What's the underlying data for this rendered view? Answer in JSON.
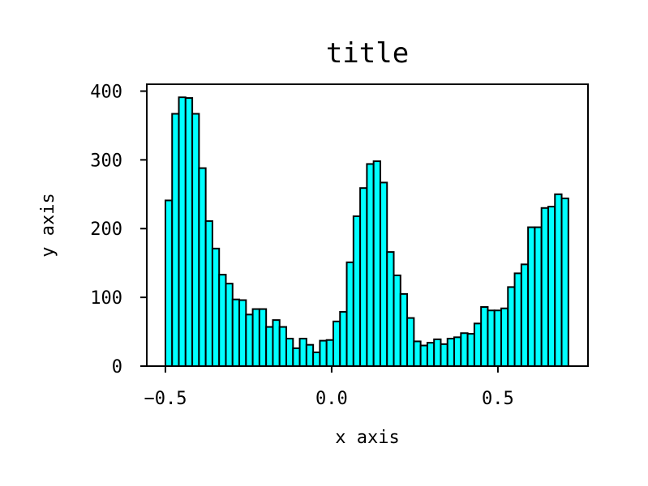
{
  "chart_data": {
    "type": "bar",
    "subtype": "histogram",
    "title": "title",
    "xlabel": "x axis",
    "ylabel": "y axis",
    "bin_range": [
      -0.5,
      0.712
    ],
    "bins": 60,
    "values": [
      241,
      367,
      391,
      390,
      367,
      288,
      211,
      171,
      133,
      120,
      97,
      96,
      75,
      83,
      83,
      57,
      67,
      57,
      40,
      26,
      40,
      31,
      20,
      37,
      38,
      65,
      79,
      151,
      218,
      259,
      294,
      298,
      267,
      166,
      132,
      105,
      70,
      36,
      30,
      34,
      39,
      32,
      40,
      42,
      48,
      47,
      62,
      86,
      81,
      81,
      84,
      115,
      135,
      148,
      202,
      202,
      230,
      232,
      250,
      244
    ],
    "xlim": [
      -0.556,
      0.771
    ],
    "ylim": [
      0,
      410
    ],
    "xticks": [
      -0.5,
      0.0,
      0.5
    ],
    "xtick_labels": [
      "−0.5",
      "0.0",
      "0.5"
    ],
    "yticks": [
      0,
      100,
      200,
      300,
      400
    ],
    "ytick_labels": [
      "0",
      "100",
      "200",
      "300",
      "400"
    ],
    "grid": false,
    "bar_color": "#00ffff",
    "edge_color": "#000000"
  }
}
